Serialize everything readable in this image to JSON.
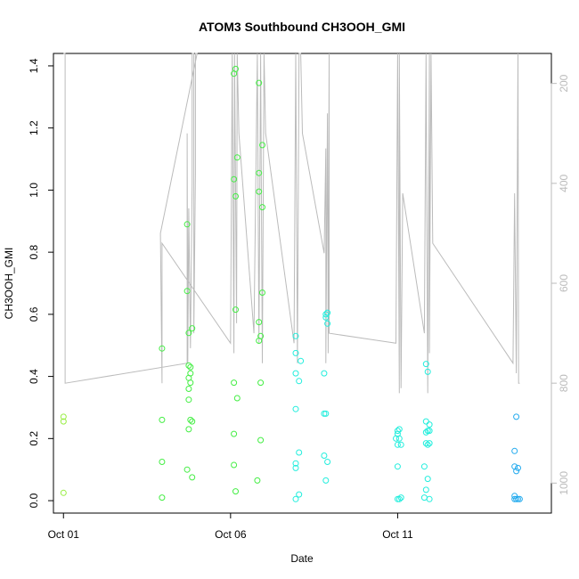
{
  "chart_data": {
    "type": "scatter",
    "title": "ATOM3 Southbound CH3OOH_GMI",
    "xlabel": "Date",
    "ylabel": "CH3OOH_GMI",
    "x_tick_labels": [
      "Oct 01",
      "Oct 06",
      "Oct 11"
    ],
    "x_tick_values_days": [
      1,
      6,
      11
    ],
    "y_tick_labels": [
      "0.0",
      "0.2",
      "0.4",
      "0.6",
      "0.8",
      "1.0",
      "1.2",
      "1.4"
    ],
    "y_tick_values": [
      0.0,
      0.2,
      0.4,
      0.6,
      0.8,
      1.0,
      1.2,
      1.4
    ],
    "right_tick_labels": [
      "200",
      "400",
      "600",
      "800",
      "1000"
    ],
    "right_tick_values": [
      200,
      400,
      600,
      800,
      1000
    ],
    "xlim_days": [
      0.7,
      15.6
    ],
    "ylim": [
      -0.04,
      1.44
    ],
    "right_ylim_reversed": [
      1060,
      140
    ],
    "grid": false,
    "point_marker": "open-circle",
    "colors": {
      "points_green": "#44ee44",
      "points_cyan": "#22eedd",
      "points_blue": "#22aaee",
      "altitude_line": "#bbbbbb"
    },
    "series": [
      {
        "values": [
          [
            1.0,
            0.27
          ],
          [
            1.0,
            0.255
          ],
          [
            1.0,
            0.025
          ],
          [
            3.95,
            0.49
          ],
          [
            3.95,
            0.26
          ],
          [
            3.95,
            0.125
          ],
          [
            3.95,
            0.01
          ],
          [
            4.7,
            0.89
          ],
          [
            4.7,
            0.675
          ],
          [
            4.75,
            0.54
          ],
          [
            4.85,
            0.555
          ],
          [
            4.75,
            0.435
          ],
          [
            4.8,
            0.43
          ],
          [
            4.8,
            0.41
          ],
          [
            4.75,
            0.395
          ],
          [
            4.8,
            0.38
          ],
          [
            4.75,
            0.36
          ],
          [
            4.75,
            0.325
          ],
          [
            4.8,
            0.26
          ],
          [
            4.85,
            0.255
          ],
          [
            4.75,
            0.23
          ],
          [
            4.7,
            0.1
          ],
          [
            4.85,
            0.075
          ],
          [
            6.1,
            1.375
          ],
          [
            6.15,
            1.39
          ],
          [
            6.2,
            1.105
          ],
          [
            6.1,
            1.035
          ],
          [
            6.15,
            0.98
          ],
          [
            6.15,
            0.615
          ],
          [
            6.1,
            0.38
          ],
          [
            6.2,
            0.33
          ],
          [
            6.1,
            0.215
          ],
          [
            6.1,
            0.115
          ],
          [
            6.15,
            0.03
          ],
          [
            6.85,
            1.345
          ],
          [
            6.95,
            1.145
          ],
          [
            6.85,
            1.055
          ],
          [
            6.85,
            0.995
          ],
          [
            6.95,
            0.945
          ],
          [
            6.95,
            0.67
          ],
          [
            6.85,
            0.575
          ],
          [
            6.9,
            0.53
          ],
          [
            6.85,
            0.515
          ],
          [
            6.9,
            0.38
          ],
          [
            6.9,
            0.195
          ],
          [
            6.8,
            0.065
          ]
        ]
      },
      {
        "values": [
          [
            7.95,
            0.53
          ],
          [
            7.95,
            0.475
          ],
          [
            8.1,
            0.45
          ],
          [
            7.95,
            0.41
          ],
          [
            8.05,
            0.385
          ],
          [
            7.95,
            0.295
          ],
          [
            8.05,
            0.155
          ],
          [
            7.95,
            0.12
          ],
          [
            7.95,
            0.105
          ],
          [
            8.05,
            0.02
          ],
          [
            7.95,
            0.005
          ],
          [
            8.85,
            0.6
          ],
          [
            8.9,
            0.605
          ],
          [
            8.85,
            0.59
          ],
          [
            8.9,
            0.57
          ],
          [
            8.8,
            0.41
          ],
          [
            8.8,
            0.28
          ],
          [
            8.85,
            0.28
          ],
          [
            8.8,
            0.145
          ],
          [
            8.9,
            0.125
          ],
          [
            8.85,
            0.065
          ],
          [
            11.0,
            0.225
          ],
          [
            11.05,
            0.23
          ],
          [
            11.0,
            0.215
          ],
          [
            10.95,
            0.2
          ],
          [
            11.05,
            0.2
          ],
          [
            11.0,
            0.18
          ],
          [
            11.1,
            0.18
          ],
          [
            11.0,
            0.11
          ],
          [
            11.0,
            0.005
          ],
          [
            11.05,
            0.005
          ],
          [
            11.1,
            0.01
          ],
          [
            11.85,
            0.44
          ],
          [
            11.9,
            0.415
          ],
          [
            11.85,
            0.255
          ],
          [
            11.95,
            0.245
          ],
          [
            11.9,
            0.225
          ],
          [
            11.85,
            0.22
          ],
          [
            11.95,
            0.225
          ],
          [
            11.85,
            0.185
          ],
          [
            11.95,
            0.185
          ],
          [
            11.9,
            0.18
          ],
          [
            11.8,
            0.11
          ],
          [
            11.9,
            0.07
          ],
          [
            11.85,
            0.035
          ],
          [
            11.8,
            0.01
          ],
          [
            11.95,
            0.005
          ]
        ]
      },
      {
        "values": [
          [
            14.55,
            0.27
          ],
          [
            14.5,
            0.16
          ],
          [
            14.5,
            0.11
          ],
          [
            14.6,
            0.105
          ],
          [
            14.55,
            0.095
          ],
          [
            14.5,
            0.015
          ],
          [
            14.5,
            0.005
          ],
          [
            14.55,
            0.005
          ],
          [
            14.6,
            0.005
          ],
          [
            14.65,
            0.005
          ]
        ]
      }
    ],
    "altitude_trace": [
      [
        1.0,
        140
      ],
      [
        1.05,
        140
      ],
      [
        1.05,
        800
      ],
      [
        4.7,
        760
      ],
      [
        4.7,
        300
      ],
      [
        4.72,
        760
      ],
      [
        4.75,
        450
      ],
      [
        4.8,
        730
      ],
      [
        4.85,
        400
      ],
      [
        4.85,
        140
      ],
      [
        4.9,
        140
      ],
      [
        4.9,
        700
      ],
      [
        4.95,
        380
      ],
      [
        4.95,
        140
      ],
      [
        5.0,
        140
      ],
      [
        3.9,
        500
      ],
      [
        3.95,
        800
      ],
      [
        3.95,
        520
      ],
      [
        6.0,
        720
      ],
      [
        6.05,
        140
      ],
      [
        6.1,
        740
      ],
      [
        6.12,
        140
      ],
      [
        6.18,
        680
      ],
      [
        6.2,
        140
      ],
      [
        6.25,
        300
      ],
      [
        6.7,
        700
      ],
      [
        6.8,
        140
      ],
      [
        6.85,
        720
      ],
      [
        6.9,
        140
      ],
      [
        6.95,
        760
      ],
      [
        7.0,
        140
      ],
      [
        7.05,
        300
      ],
      [
        7.9,
        720
      ],
      [
        7.95,
        140
      ],
      [
        8.0,
        760
      ],
      [
        8.05,
        140
      ],
      [
        8.1,
        140
      ],
      [
        8.15,
        300
      ],
      [
        8.8,
        540
      ],
      [
        8.85,
        330
      ],
      [
        8.85,
        760
      ],
      [
        8.9,
        260
      ],
      [
        8.92,
        740
      ],
      [
        8.95,
        140
      ],
      [
        8.95,
        700
      ],
      [
        10.95,
        720
      ],
      [
        11.0,
        140
      ],
      [
        11.05,
        820
      ],
      [
        11.05,
        140
      ],
      [
        11.1,
        810
      ],
      [
        11.15,
        420
      ],
      [
        11.8,
        700
      ],
      [
        11.85,
        140
      ],
      [
        11.9,
        820
      ],
      [
        11.95,
        140
      ],
      [
        11.95,
        740
      ],
      [
        12.0,
        140
      ],
      [
        12.05,
        520
      ],
      [
        14.45,
        760
      ],
      [
        14.5,
        420
      ],
      [
        14.55,
        780
      ],
      [
        14.6,
        140
      ],
      [
        14.62,
        800
      ],
      [
        14.65,
        800
      ]
    ]
  }
}
